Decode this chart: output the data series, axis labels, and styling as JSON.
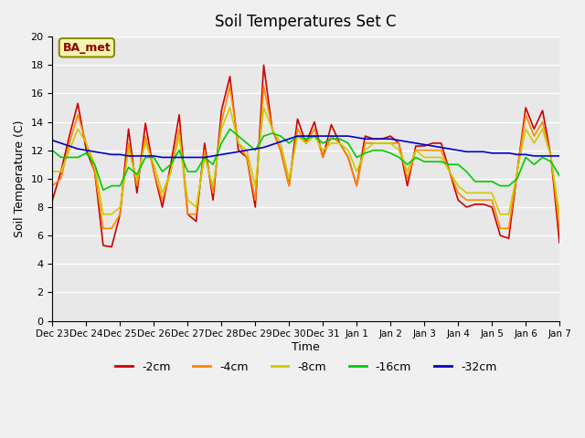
{
  "title": "Soil Temperatures Set C",
  "xlabel": "Time",
  "ylabel": "Soil Temperature (C)",
  "ylim": [
    0,
    20
  ],
  "yticks": [
    0,
    2,
    4,
    6,
    8,
    10,
    12,
    14,
    16,
    18,
    20
  ],
  "annotation": "BA_met",
  "background_color": "#e8e8e8",
  "plot_bg_color": "#e8e8e8",
  "colors": {
    "-2cm": "#cc0000",
    "-4cm": "#ff8800",
    "-8cm": "#cccc00",
    "-16cm": "#00cc00",
    "-32cm": "#0000cc"
  },
  "x_labels": [
    "Dec 23",
    "Dec 24",
    "Dec 25",
    "Dec 26",
    "Dec 27",
    "Dec 28",
    "Dec 29",
    "Dec 30",
    "Dec 31",
    "Jan 1",
    "Jan 2",
    "Jan 3",
    "Jan 4",
    "Jan 5",
    "Jan 6",
    "Jan 7"
  ],
  "x_positions": [
    0,
    4,
    8,
    12,
    16,
    20,
    24,
    28,
    32,
    36,
    40,
    44,
    48,
    52,
    56,
    60
  ],
  "data": {
    "-2cm": [
      8.5,
      10.5,
      13.0,
      15.3,
      12.0,
      10.5,
      5.3,
      5.2,
      7.5,
      13.5,
      9.0,
      13.9,
      10.5,
      8.0,
      11.0,
      14.5,
      7.5,
      7.0,
      12.5,
      8.5,
      14.8,
      17.2,
      12.0,
      11.5,
      8.0,
      18.0,
      13.5,
      12.0,
      9.5,
      14.2,
      12.5,
      14.0,
      11.5,
      13.8,
      12.5,
      11.5,
      9.5,
      13.0,
      12.8,
      12.8,
      13.0,
      12.5,
      9.5,
      12.3,
      12.3,
      12.5,
      12.5,
      10.5,
      8.5,
      8.0,
      8.2,
      8.2,
      8.0,
      6.0,
      5.8,
      10.5,
      15.0,
      13.5,
      14.8,
      11.5,
      5.5
    ],
    "-4cm": [
      9.5,
      10.0,
      12.5,
      14.5,
      12.5,
      10.5,
      6.5,
      6.5,
      7.5,
      12.5,
      9.5,
      13.0,
      10.5,
      8.5,
      10.5,
      13.5,
      7.5,
      7.5,
      12.0,
      9.0,
      14.0,
      16.5,
      12.5,
      11.5,
      8.5,
      16.5,
      13.5,
      12.0,
      9.5,
      13.5,
      12.5,
      13.5,
      11.5,
      13.0,
      12.5,
      11.5,
      9.5,
      12.5,
      12.5,
      12.5,
      12.5,
      12.5,
      10.0,
      12.0,
      12.0,
      12.0,
      12.0,
      10.5,
      9.0,
      8.5,
      8.5,
      8.5,
      8.5,
      6.5,
      6.5,
      10.5,
      14.5,
      13.0,
      14.0,
      11.5,
      6.5
    ],
    "-8cm": [
      10.5,
      10.5,
      12.0,
      13.5,
      12.5,
      11.0,
      7.5,
      7.5,
      8.0,
      12.0,
      10.0,
      12.5,
      11.0,
      9.0,
      10.5,
      13.0,
      8.5,
      8.0,
      11.5,
      9.5,
      13.5,
      15.0,
      12.5,
      12.0,
      9.5,
      15.0,
      13.5,
      12.5,
      10.0,
      13.0,
      12.5,
      13.0,
      12.0,
      12.5,
      12.5,
      12.0,
      10.5,
      12.0,
      12.5,
      12.5,
      12.5,
      12.0,
      10.5,
      12.0,
      11.5,
      11.5,
      11.5,
      10.5,
      9.5,
      9.0,
      9.0,
      9.0,
      9.0,
      7.5,
      7.5,
      10.5,
      13.5,
      12.5,
      13.5,
      11.5,
      7.5
    ],
    "-16cm": [
      12.0,
      11.5,
      11.5,
      11.5,
      11.8,
      11.0,
      9.2,
      9.5,
      9.5,
      10.8,
      10.3,
      11.5,
      11.5,
      10.5,
      11.0,
      12.0,
      10.5,
      10.5,
      11.5,
      11.0,
      12.5,
      13.5,
      13.0,
      12.5,
      12.0,
      13.0,
      13.2,
      13.0,
      12.5,
      13.0,
      12.8,
      13.0,
      12.5,
      12.8,
      12.8,
      12.5,
      11.5,
      11.8,
      12.0,
      12.0,
      11.8,
      11.5,
      11.0,
      11.5,
      11.2,
      11.2,
      11.2,
      11.0,
      11.0,
      10.5,
      9.8,
      9.8,
      9.8,
      9.5,
      9.5,
      10.0,
      11.5,
      11.0,
      11.5,
      11.2,
      10.2
    ],
    "-32cm": [
      12.7,
      12.5,
      12.3,
      12.1,
      12.0,
      11.9,
      11.8,
      11.7,
      11.7,
      11.6,
      11.6,
      11.6,
      11.6,
      11.5,
      11.5,
      11.5,
      11.5,
      11.5,
      11.5,
      11.6,
      11.7,
      11.8,
      11.9,
      12.0,
      12.1,
      12.2,
      12.4,
      12.6,
      12.8,
      13.0,
      13.0,
      13.0,
      13.0,
      13.0,
      13.0,
      13.0,
      12.9,
      12.8,
      12.8,
      12.8,
      12.8,
      12.7,
      12.6,
      12.5,
      12.4,
      12.3,
      12.2,
      12.1,
      12.0,
      11.9,
      11.9,
      11.9,
      11.8,
      11.8,
      11.8,
      11.7,
      11.7,
      11.6,
      11.6,
      11.6,
      11.6
    ]
  }
}
